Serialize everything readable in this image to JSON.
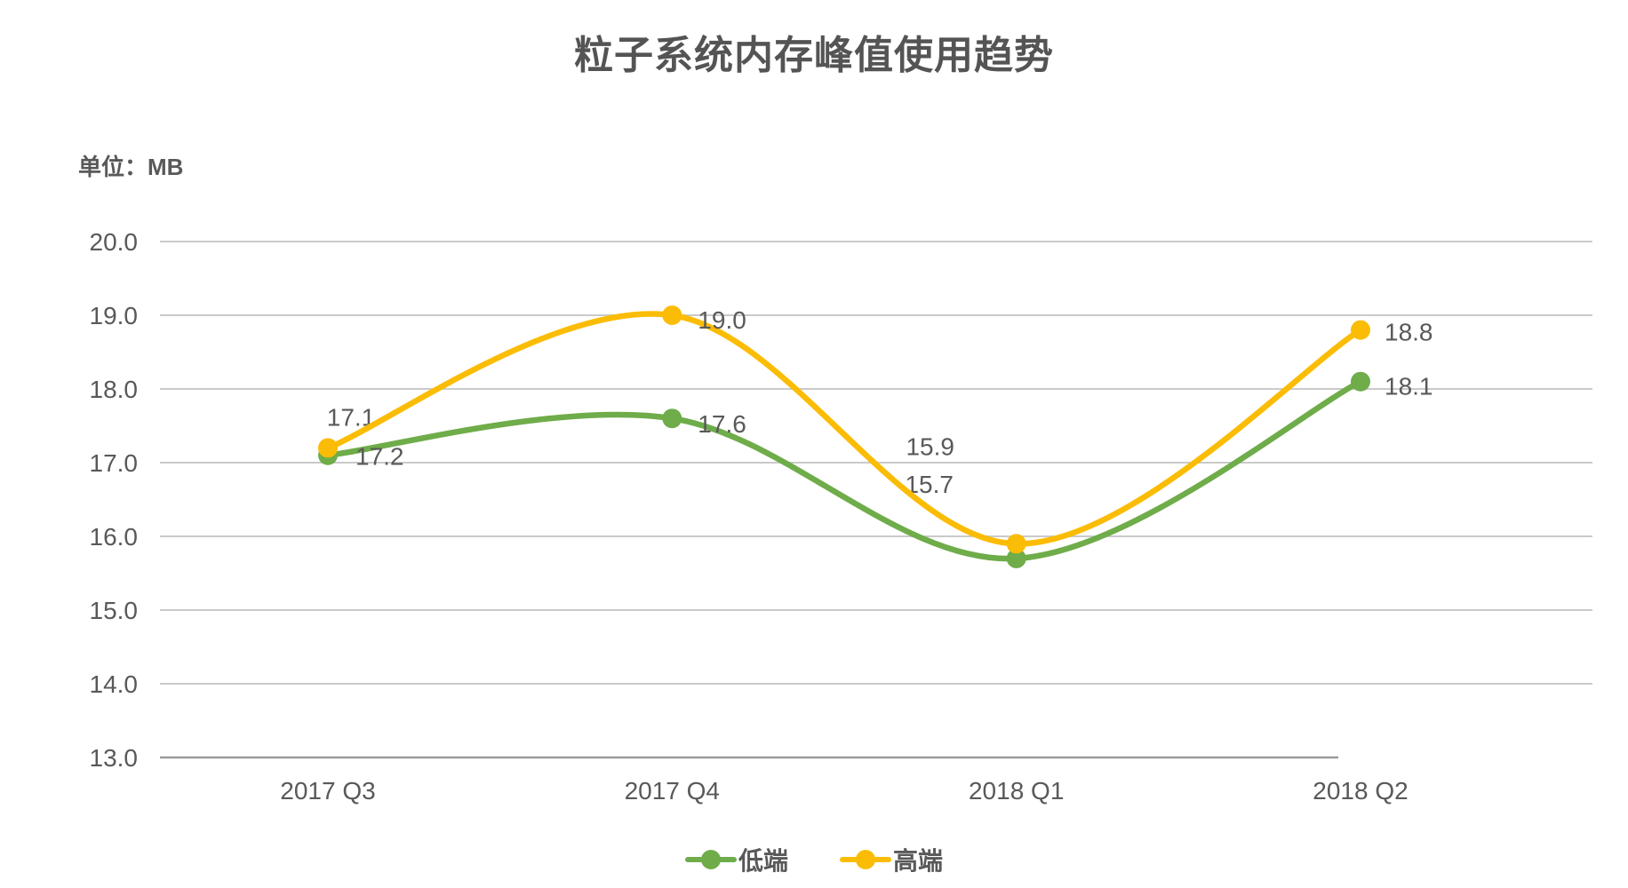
{
  "chart_data": {
    "type": "line",
    "title": "粒子系统内存峰值使用趋势",
    "unit_label": "单位：MB",
    "unit": "MB",
    "categories": [
      "2017 Q3",
      "2017 Q4",
      "2018 Q1",
      "2018 Q2"
    ],
    "series": [
      {
        "id": "low-end",
        "name": "低端",
        "color": "#6FAC4A",
        "values": [
          17.1,
          17.6,
          15.7,
          18.1
        ],
        "label_placements": [
          {
            "dx": 26,
            "dy": -43,
            "anchor": "middle"
          },
          {
            "dx": 29,
            "dy": 6,
            "anchor": "start"
          },
          {
            "dx": -98,
            "dy": -84,
            "anchor": "middle"
          },
          {
            "dx": 27,
            "dy": 5,
            "anchor": "start"
          }
        ]
      },
      {
        "id": "high-end",
        "name": "高端",
        "color": "#FBBC05",
        "values": [
          17.2,
          19.0,
          15.9,
          18.8
        ],
        "label_placements": [
          {
            "dx": 31,
            "dy": 9,
            "anchor": "start"
          },
          {
            "dx": 29,
            "dy": 5,
            "anchor": "start"
          },
          {
            "dx": -97,
            "dy": -110,
            "anchor": "middle"
          },
          {
            "dx": 27,
            "dy": 2,
            "anchor": "start"
          }
        ]
      }
    ],
    "ylim": [
      13.0,
      20.0
    ],
    "ytick_step": 1.0,
    "ytick_decimals": 1,
    "value_label_decimals": 1,
    "grid": true,
    "legend_position": "bottom-center",
    "colors": {
      "text": "#595959",
      "gridline": "#cacaca",
      "axis_line": "#9b9b9b",
      "background": "#ffffff"
    }
  }
}
